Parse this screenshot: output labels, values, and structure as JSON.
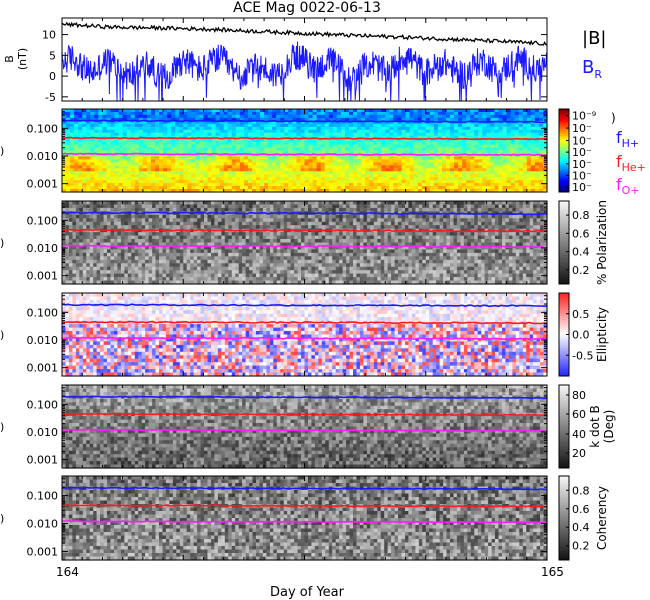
{
  "title": "ACE Mag 0022-06-13",
  "xlabel": "Day of Year",
  "colors": {
    "B_total": "#000000",
    "B_R": "#1a1aff",
    "f_Hplus": "#1a1aff",
    "f_Heplus": "#ff1a1a",
    "f_Oplus": "#ff1aff"
  },
  "chart_data": [
    {
      "type": "line",
      "panel": "magnetic-field",
      "ylabel": "B (nT)",
      "ylim": [
        -6,
        14
      ],
      "yticks": [
        -5,
        0,
        5,
        10
      ],
      "x_range": [
        164,
        165
      ],
      "series": [
        {
          "name": "|B|",
          "x": [
            164.0,
            164.1,
            164.2,
            164.3,
            164.4,
            164.5,
            164.6,
            164.7,
            164.8,
            164.9,
            165.0
          ],
          "values": [
            12.5,
            11.8,
            11.6,
            11.3,
            10.8,
            10.3,
            9.8,
            9.4,
            8.9,
            8.4,
            7.8
          ]
        },
        {
          "name": "B_R",
          "x": [
            164.0,
            164.1,
            164.2,
            164.3,
            164.4,
            164.5,
            164.6,
            164.7,
            164.8,
            164.9,
            165.0
          ],
          "values": [
            3.0,
            2.0,
            1.0,
            3.5,
            0.5,
            4.0,
            0.5,
            3.5,
            1.5,
            2.5,
            3.0
          ]
        }
      ],
      "legend": [
        "|B|",
        "B_R"
      ]
    },
    {
      "type": "heatmap",
      "panel": "power-spectrum",
      "ylabel": "Frequency (Hz)",
      "yscale": "log",
      "ylim": [
        0.0005,
        0.5
      ],
      "ytick_labels": [
        "0.001",
        "0.010",
        "0.100"
      ],
      "colorbar_ticks": [
        "10⁻⁹",
        "10⁻",
        "10⁻",
        "10⁻",
        "10⁻",
        "10⁻",
        "10⁻"
      ],
      "colorbar_extra": ")",
      "overlays": [
        {
          "name": "f_H+",
          "values": [
            0.19,
            0.17
          ]
        },
        {
          "name": "f_He+",
          "values": [
            0.045,
            0.041
          ]
        },
        {
          "name": "f_O+",
          "values": [
            0.012,
            0.011
          ]
        }
      ],
      "legend": [
        "f_H+",
        "f_He+",
        "f_O+"
      ]
    },
    {
      "type": "heatmap",
      "panel": "polarization",
      "yscale": "log",
      "ytick_labels": [
        "0.001",
        "0.010",
        "0.100"
      ],
      "colorbar_label": "% Polarization",
      "colorbar_ticks": [
        "0.2",
        "0.4",
        "0.6",
        "0.8"
      ],
      "colorbar_range": [
        0.05,
        0.95
      ]
    },
    {
      "type": "heatmap",
      "panel": "ellipticity",
      "yscale": "log",
      "ytick_labels": [
        "0.001",
        "0.010",
        "0.100"
      ],
      "colorbar_label": "Ellipticity",
      "colorbar_ticks": [
        "-0.5",
        "0.0",
        "0.5"
      ],
      "colorbar_range": [
        -1,
        1
      ]
    },
    {
      "type": "heatmap",
      "panel": "k-dot-b",
      "yscale": "log",
      "ytick_labels": [
        "0.001",
        "0.010",
        "0.100"
      ],
      "colorbar_label": [
        "k dot B",
        "(Deg)"
      ],
      "colorbar_ticks": [
        "20",
        "40",
        "60",
        "80"
      ],
      "colorbar_range": [
        5,
        90
      ]
    },
    {
      "type": "heatmap",
      "panel": "coherency",
      "yscale": "log",
      "ytick_labels": [
        "0.001",
        "0.010",
        "0.100"
      ],
      "colorbar_label": "Coherency",
      "colorbar_ticks": [
        "0.2",
        "0.4",
        "0.6",
        "0.8"
      ],
      "colorbar_range": [
        0.05,
        0.95
      ]
    }
  ],
  "xticks": [
    "164",
    "165"
  ]
}
